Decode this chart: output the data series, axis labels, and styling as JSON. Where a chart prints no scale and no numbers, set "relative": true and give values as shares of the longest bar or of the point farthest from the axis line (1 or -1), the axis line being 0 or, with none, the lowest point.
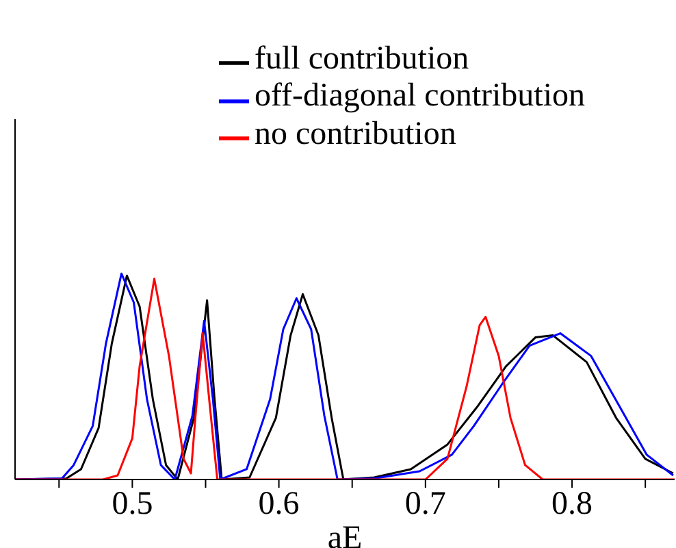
{
  "chart_data": {
    "type": "line",
    "xlabel": "aE",
    "relative": true,
    "xlim": [
      0.42,
      0.87
    ],
    "xticks": [
      {
        "value": 0.45,
        "label": null
      },
      0.5,
      {
        "value": 0.55,
        "label": null
      },
      0.6,
      {
        "value": 0.65,
        "label": null
      },
      0.7,
      {
        "value": 0.75,
        "label": null
      },
      0.8,
      {
        "value": 0.85,
        "label": null
      }
    ],
    "legend": "top right",
    "grid": false,
    "marker": "none",
    "line_style": "solid",
    "series": [
      {
        "name": "full contribution",
        "color": "#000000",
        "x": [
          0.42,
          0.455,
          0.465,
          0.477,
          0.486,
          0.4963,
          0.505,
          0.514,
          0.523,
          0.531,
          0.542,
          0.551,
          0.556,
          0.561,
          0.58,
          0.598,
          0.608,
          0.6163,
          0.627,
          0.636,
          0.644,
          0.665,
          0.69,
          0.715,
          0.735,
          0.755,
          0.775,
          0.787,
          0.81,
          0.83,
          0.85,
          0.869
        ],
        "values": [
          0,
          0.005,
          0.05,
          0.25,
          0.66,
          0.99,
          0.84,
          0.39,
          0.07,
          0,
          0.3,
          0.87,
          0.4,
          0,
          0.01,
          0.3,
          0.7,
          0.9,
          0.7,
          0.3,
          0,
          0.01,
          0.05,
          0.17,
          0.35,
          0.55,
          0.69,
          0.7,
          0.57,
          0.3,
          0.1,
          0.03
        ]
      },
      {
        "name": "off-diagonal contribution",
        "color": "#0000ff",
        "x": [
          0.42,
          0.452,
          0.46,
          0.473,
          0.482,
          0.4926,
          0.501,
          0.51,
          0.5195,
          0.529,
          0.541,
          0.549,
          0.555,
          0.56,
          0.578,
          0.594,
          0.603,
          0.612,
          0.622,
          0.631,
          0.64,
          0.665,
          0.696,
          0.718,
          0.733,
          0.752,
          0.771,
          0.792,
          0.813,
          0.832,
          0.851,
          0.869
        ],
        "values": [
          0,
          0.005,
          0.07,
          0.26,
          0.66,
          1,
          0.86,
          0.39,
          0.07,
          0,
          0.31,
          0.77,
          0.39,
          0,
          0.05,
          0.39,
          0.73,
          0.88,
          0.73,
          0.31,
          0,
          0.005,
          0.04,
          0.12,
          0.26,
          0.46,
          0.65,
          0.71,
          0.6,
          0.36,
          0.12,
          0.02
        ]
      },
      {
        "name": "no contribution",
        "color": "#ff0000",
        "x": [
          0.42,
          0.48,
          0.49,
          0.5,
          0.505,
          0.515,
          0.525,
          0.535,
          0.54,
          0.543,
          0.548,
          0.553,
          0.558,
          0.6,
          0.7,
          0.715,
          0.728,
          0.737,
          0.741,
          0.75,
          0.758,
          0.768,
          0.78,
          0.87
        ],
        "values": [
          0,
          0,
          0.02,
          0.2,
          0.55,
          0.975,
          0.6,
          0.1,
          0.03,
          0.3,
          0.71,
          0.35,
          0,
          0,
          0,
          0.1,
          0.45,
          0.75,
          0.79,
          0.6,
          0.3,
          0.07,
          0,
          0
        ]
      }
    ]
  }
}
